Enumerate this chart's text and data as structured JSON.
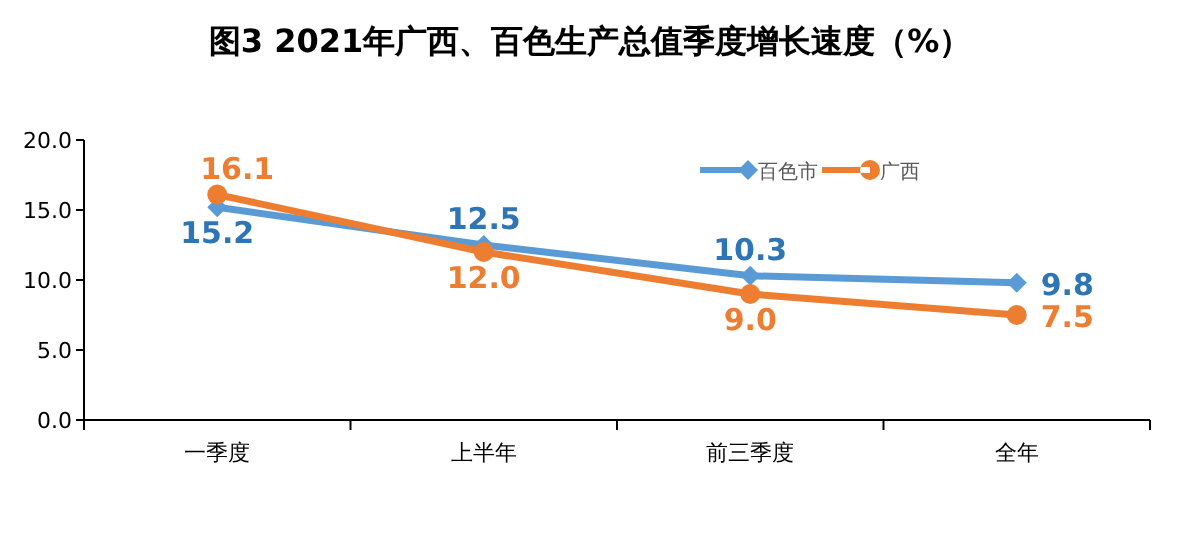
{
  "chart_data": {
    "type": "line",
    "title": "图3  2021年广西、百色生产总值季度增长速度（%）",
    "categories": [
      "一季度",
      "上半年",
      "前三季度",
      "全年"
    ],
    "series": [
      {
        "name": "百色市",
        "color": "#5b9bd5",
        "marker": "diamond",
        "values": [
          15.2,
          12.5,
          10.3,
          9.8
        ],
        "value_labels": [
          "15.2",
          "12.5",
          "10.3",
          "9.8"
        ]
      },
      {
        "name": "广西",
        "color": "#ed7d31",
        "marker": "circle",
        "values": [
          16.1,
          12.0,
          9.0,
          7.5
        ],
        "value_labels": [
          "16.1",
          "12.0",
          "9.0",
          "7.5"
        ]
      }
    ],
    "ylim": [
      0,
      20
    ],
    "yticks": [
      {
        "value": 0,
        "label": "0.0"
      },
      {
        "value": 5,
        "label": "5.0"
      },
      {
        "value": 10,
        "label": "10.0"
      },
      {
        "value": 15,
        "label": "15.0"
      },
      {
        "value": 20,
        "label": "20.0"
      }
    ],
    "grid": false,
    "legend": "top right",
    "line_style": "solid"
  }
}
